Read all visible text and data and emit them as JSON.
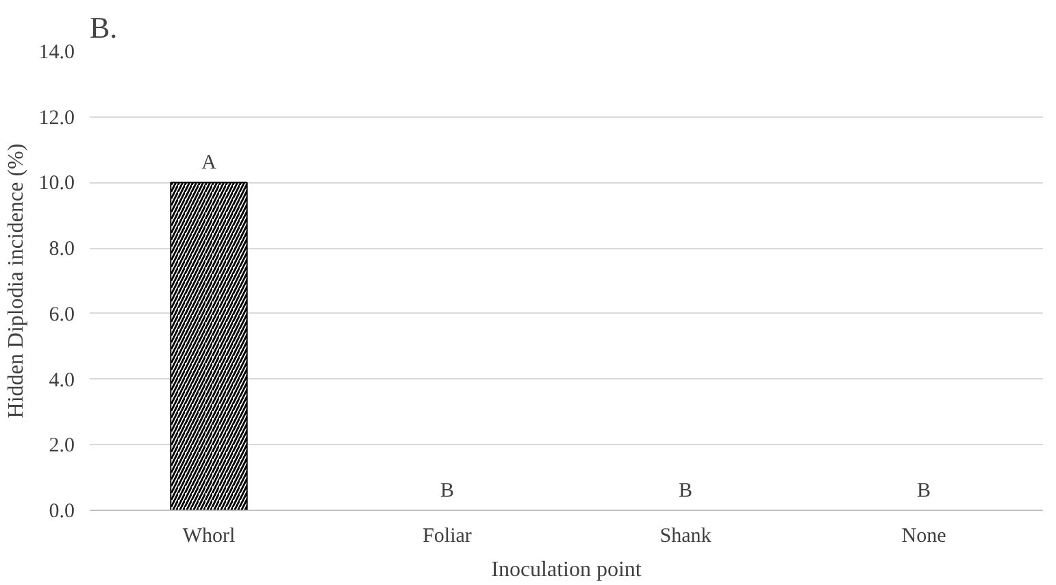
{
  "chart_data": {
    "type": "bar",
    "title": "B.",
    "xlabel": "Inoculation point",
    "ylabel": "Hidden Diplodia incidence (%)",
    "categories": [
      "Whorl",
      "Foliar",
      "Shank",
      "None"
    ],
    "values": [
      10,
      0,
      0,
      0
    ],
    "color": "#000000",
    "ylim": [
      0,
      14
    ],
    "yticks": [
      {
        "value": 0,
        "label": "0.0"
      },
      {
        "value": 2,
        "label": "2.0"
      },
      {
        "value": 4,
        "label": "4.0"
      },
      {
        "value": 6,
        "label": "6.0"
      },
      {
        "value": 8,
        "label": "8.0"
      },
      {
        "value": 10,
        "label": "10.0"
      },
      {
        "value": 12,
        "label": "12.0"
      },
      {
        "value": 14,
        "label": "14.0"
      }
    ],
    "grid": "y",
    "annotations": [
      {
        "text": "A",
        "x": "Whorl",
        "y": 10
      },
      {
        "text": "B",
        "x": "Foliar",
        "y": 0
      },
      {
        "text": "B",
        "x": "Shank",
        "y": 0
      },
      {
        "text": "B",
        "x": "None",
        "y": 0
      }
    ]
  }
}
